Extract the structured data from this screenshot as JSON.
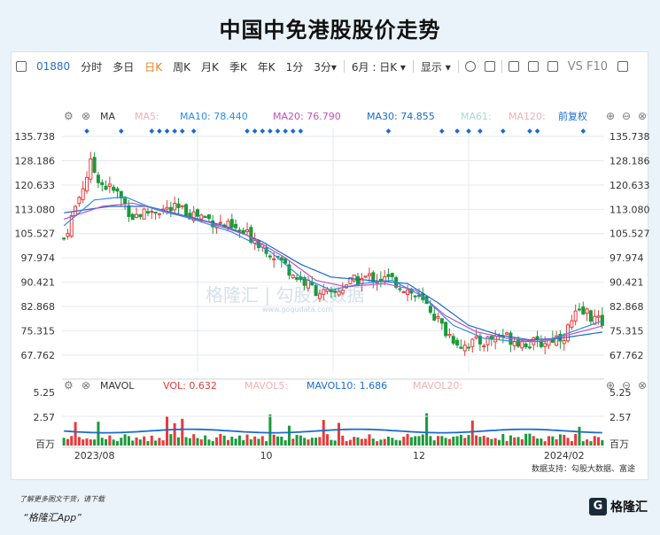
{
  "page_title": "中国中免港股股价走势",
  "toolbar": {
    "code": "01880",
    "items": [
      "分时",
      "多日",
      "日K",
      "周K",
      "月K",
      "季K",
      "年K",
      "1分",
      "3分▾",
      "6月 : 日K ▾",
      "显示 ▾"
    ],
    "active": "日K",
    "right_text": "VS F10"
  },
  "ma_legend": {
    "label": "MA",
    "ma5": "MA5:",
    "ma10": "MA10: 78.440",
    "ma20": "MA20: 76.790",
    "ma30": "MA30: 74.855",
    "ma61": "MA61:",
    "ma120": "MA120:",
    "fq": "前复权"
  },
  "vol_legend": {
    "label": "MAVOL",
    "vol": "VOL: 0.632",
    "mavol5": "MAVOL5:",
    "mavol10": "MAVOL10: 1.686",
    "mavol20": "MAVOL20:"
  },
  "watermark": "格隆汇 | 勾股大数据",
  "watermark_url": "www.gogudata.com",
  "source": "数据支持：勾股大数据、富途",
  "footer_line1": "了解更多图文干货，请下载",
  "footer_line2": "“格隆汇App”",
  "brand": "格隆汇",
  "colors": {
    "up": "#e83a3a",
    "down": "#1a9a3a",
    "ma10": "#2a8ee8",
    "ma20": "#c050c0",
    "ma30": "#1a6ad0",
    "grid": "#e6e9ee",
    "vol_avg": "#1a6ad0"
  },
  "chart_data": {
    "type": "candlestick",
    "price_axis": {
      "ticks": [
        135.738,
        128.186,
        120.633,
        113.08,
        105.527,
        97.974,
        90.421,
        82.868,
        75.315,
        67.762
      ],
      "range": [
        62.5,
        138.5
      ]
    },
    "volume_axis": {
      "ticks": [
        "5.25",
        "2.57",
        "百万"
      ],
      "range": [
        0,
        5.25
      ]
    },
    "x_labels": [
      "2023/08",
      "10",
      "12",
      "2024/02"
    ],
    "x_label_index": [
      8,
      53,
      93,
      131
    ],
    "n_candles": 142,
    "close_path": [
      [
        0,
        104
      ],
      [
        4,
        117
      ],
      [
        7,
        127
      ],
      [
        10,
        121
      ],
      [
        14,
        118
      ],
      [
        18,
        111
      ],
      [
        24,
        113
      ],
      [
        30,
        113
      ],
      [
        36,
        111
      ],
      [
        44,
        107
      ],
      [
        50,
        104
      ],
      [
        56,
        98
      ],
      [
        61,
        92
      ],
      [
        66,
        88
      ],
      [
        70,
        86
      ],
      [
        74,
        90
      ],
      [
        80,
        92
      ],
      [
        86,
        91
      ],
      [
        90,
        88
      ],
      [
        96,
        82
      ],
      [
        100,
        75
      ],
      [
        104,
        71
      ],
      [
        110,
        72
      ],
      [
        114,
        74
      ],
      [
        120,
        72
      ],
      [
        124,
        71
      ],
      [
        128,
        73
      ],
      [
        131,
        74
      ],
      [
        134,
        80
      ],
      [
        137,
        81
      ],
      [
        140,
        78
      ],
      [
        141,
        78
      ]
    ],
    "ma_paths": {
      "ma10": [
        [
          0,
          108
        ],
        [
          8,
          116
        ],
        [
          16,
          117
        ],
        [
          24,
          113
        ],
        [
          34,
          110
        ],
        [
          44,
          106
        ],
        [
          54,
          100
        ],
        [
          62,
          92
        ],
        [
          70,
          88
        ],
        [
          78,
          90
        ],
        [
          86,
          91
        ],
        [
          94,
          86
        ],
        [
          102,
          77
        ],
        [
          110,
          73
        ],
        [
          118,
          72
        ],
        [
          126,
          72
        ],
        [
          133,
          75
        ],
        [
          141,
          78.4
        ]
      ],
      "ma20": [
        [
          0,
          110
        ],
        [
          10,
          114
        ],
        [
          18,
          115
        ],
        [
          28,
          112
        ],
        [
          38,
          109
        ],
        [
          48,
          105
        ],
        [
          58,
          98
        ],
        [
          66,
          91
        ],
        [
          74,
          89
        ],
        [
          84,
          90
        ],
        [
          92,
          88
        ],
        [
          100,
          80
        ],
        [
          108,
          75
        ],
        [
          116,
          73
        ],
        [
          124,
          72
        ],
        [
          132,
          74
        ],
        [
          141,
          76.8
        ]
      ],
      "ma30": [
        [
          0,
          112
        ],
        [
          12,
          114
        ],
        [
          22,
          114
        ],
        [
          32,
          111
        ],
        [
          42,
          108
        ],
        [
          52,
          103
        ],
        [
          62,
          96
        ],
        [
          70,
          92
        ],
        [
          80,
          91
        ],
        [
          90,
          90
        ],
        [
          98,
          84
        ],
        [
          106,
          77
        ],
        [
          114,
          74
        ],
        [
          122,
          72.5
        ],
        [
          130,
          73
        ],
        [
          141,
          74.9
        ]
      ]
    },
    "volume_avg_level": 1.686,
    "volume_last": 0.632,
    "signal_dot_index": [
      6,
      15,
      23,
      25,
      27,
      29,
      31,
      34,
      48,
      50,
      52,
      54,
      56,
      58,
      60,
      62,
      85,
      99,
      103,
      106,
      109,
      115,
      122,
      124,
      136
    ]
  }
}
